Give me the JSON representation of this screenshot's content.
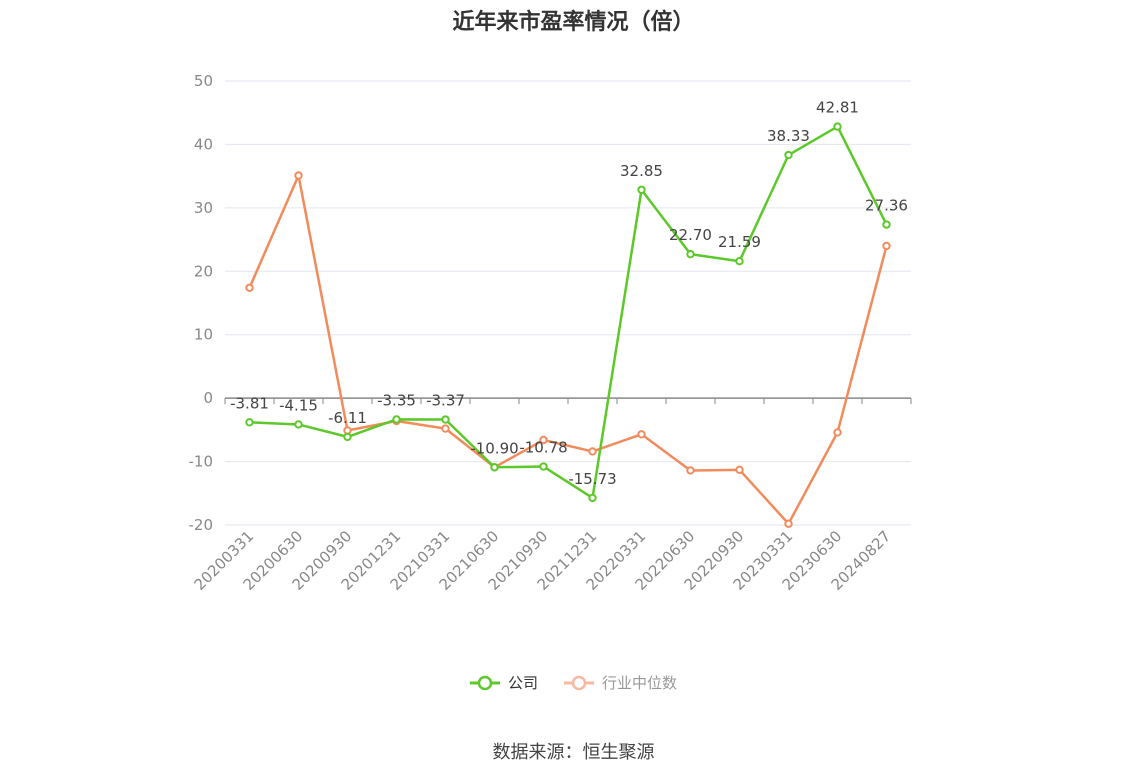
{
  "chart_data": {
    "type": "line",
    "title": "近年来市盈率情况（倍）",
    "source": "数据来源：恒生聚源",
    "xlabel": "",
    "ylabel": "",
    "ylim": [
      -20,
      50
    ],
    "yticks": [
      50,
      40,
      30,
      20,
      10,
      0,
      -10,
      -20
    ],
    "categories": [
      "20200331",
      "20200630",
      "20200930",
      "20201231",
      "20210331",
      "20210630",
      "20210930",
      "20211231",
      "20220331",
      "20220630",
      "20220930",
      "20230331",
      "20230630",
      "20240827"
    ],
    "series": [
      {
        "name": "公司",
        "color": "#5cc82a",
        "values": [
          -3.81,
          -4.15,
          -6.11,
          -3.35,
          -3.37,
          -10.9,
          -10.78,
          -15.73,
          32.85,
          22.7,
          21.59,
          38.33,
          42.81,
          27.36
        ],
        "labels": [
          "-3.81",
          "-4.15",
          "-6.11",
          "-3.35",
          "-3.37",
          "-10.90",
          "-10.78",
          "-15.73",
          "32.85",
          "22.70",
          "21.59",
          "38.33",
          "42.81",
          "27.36"
        ]
      },
      {
        "name": "行业中位数",
        "color": "#f28b5c",
        "values": [
          17.4,
          35.1,
          -5.1,
          -3.6,
          -4.8,
          -10.9,
          -6.6,
          -8.4,
          -5.7,
          -11.4,
          -11.3,
          -19.8,
          -5.4,
          24.0
        ]
      }
    ],
    "legend_position": "bottom",
    "grid": true
  }
}
